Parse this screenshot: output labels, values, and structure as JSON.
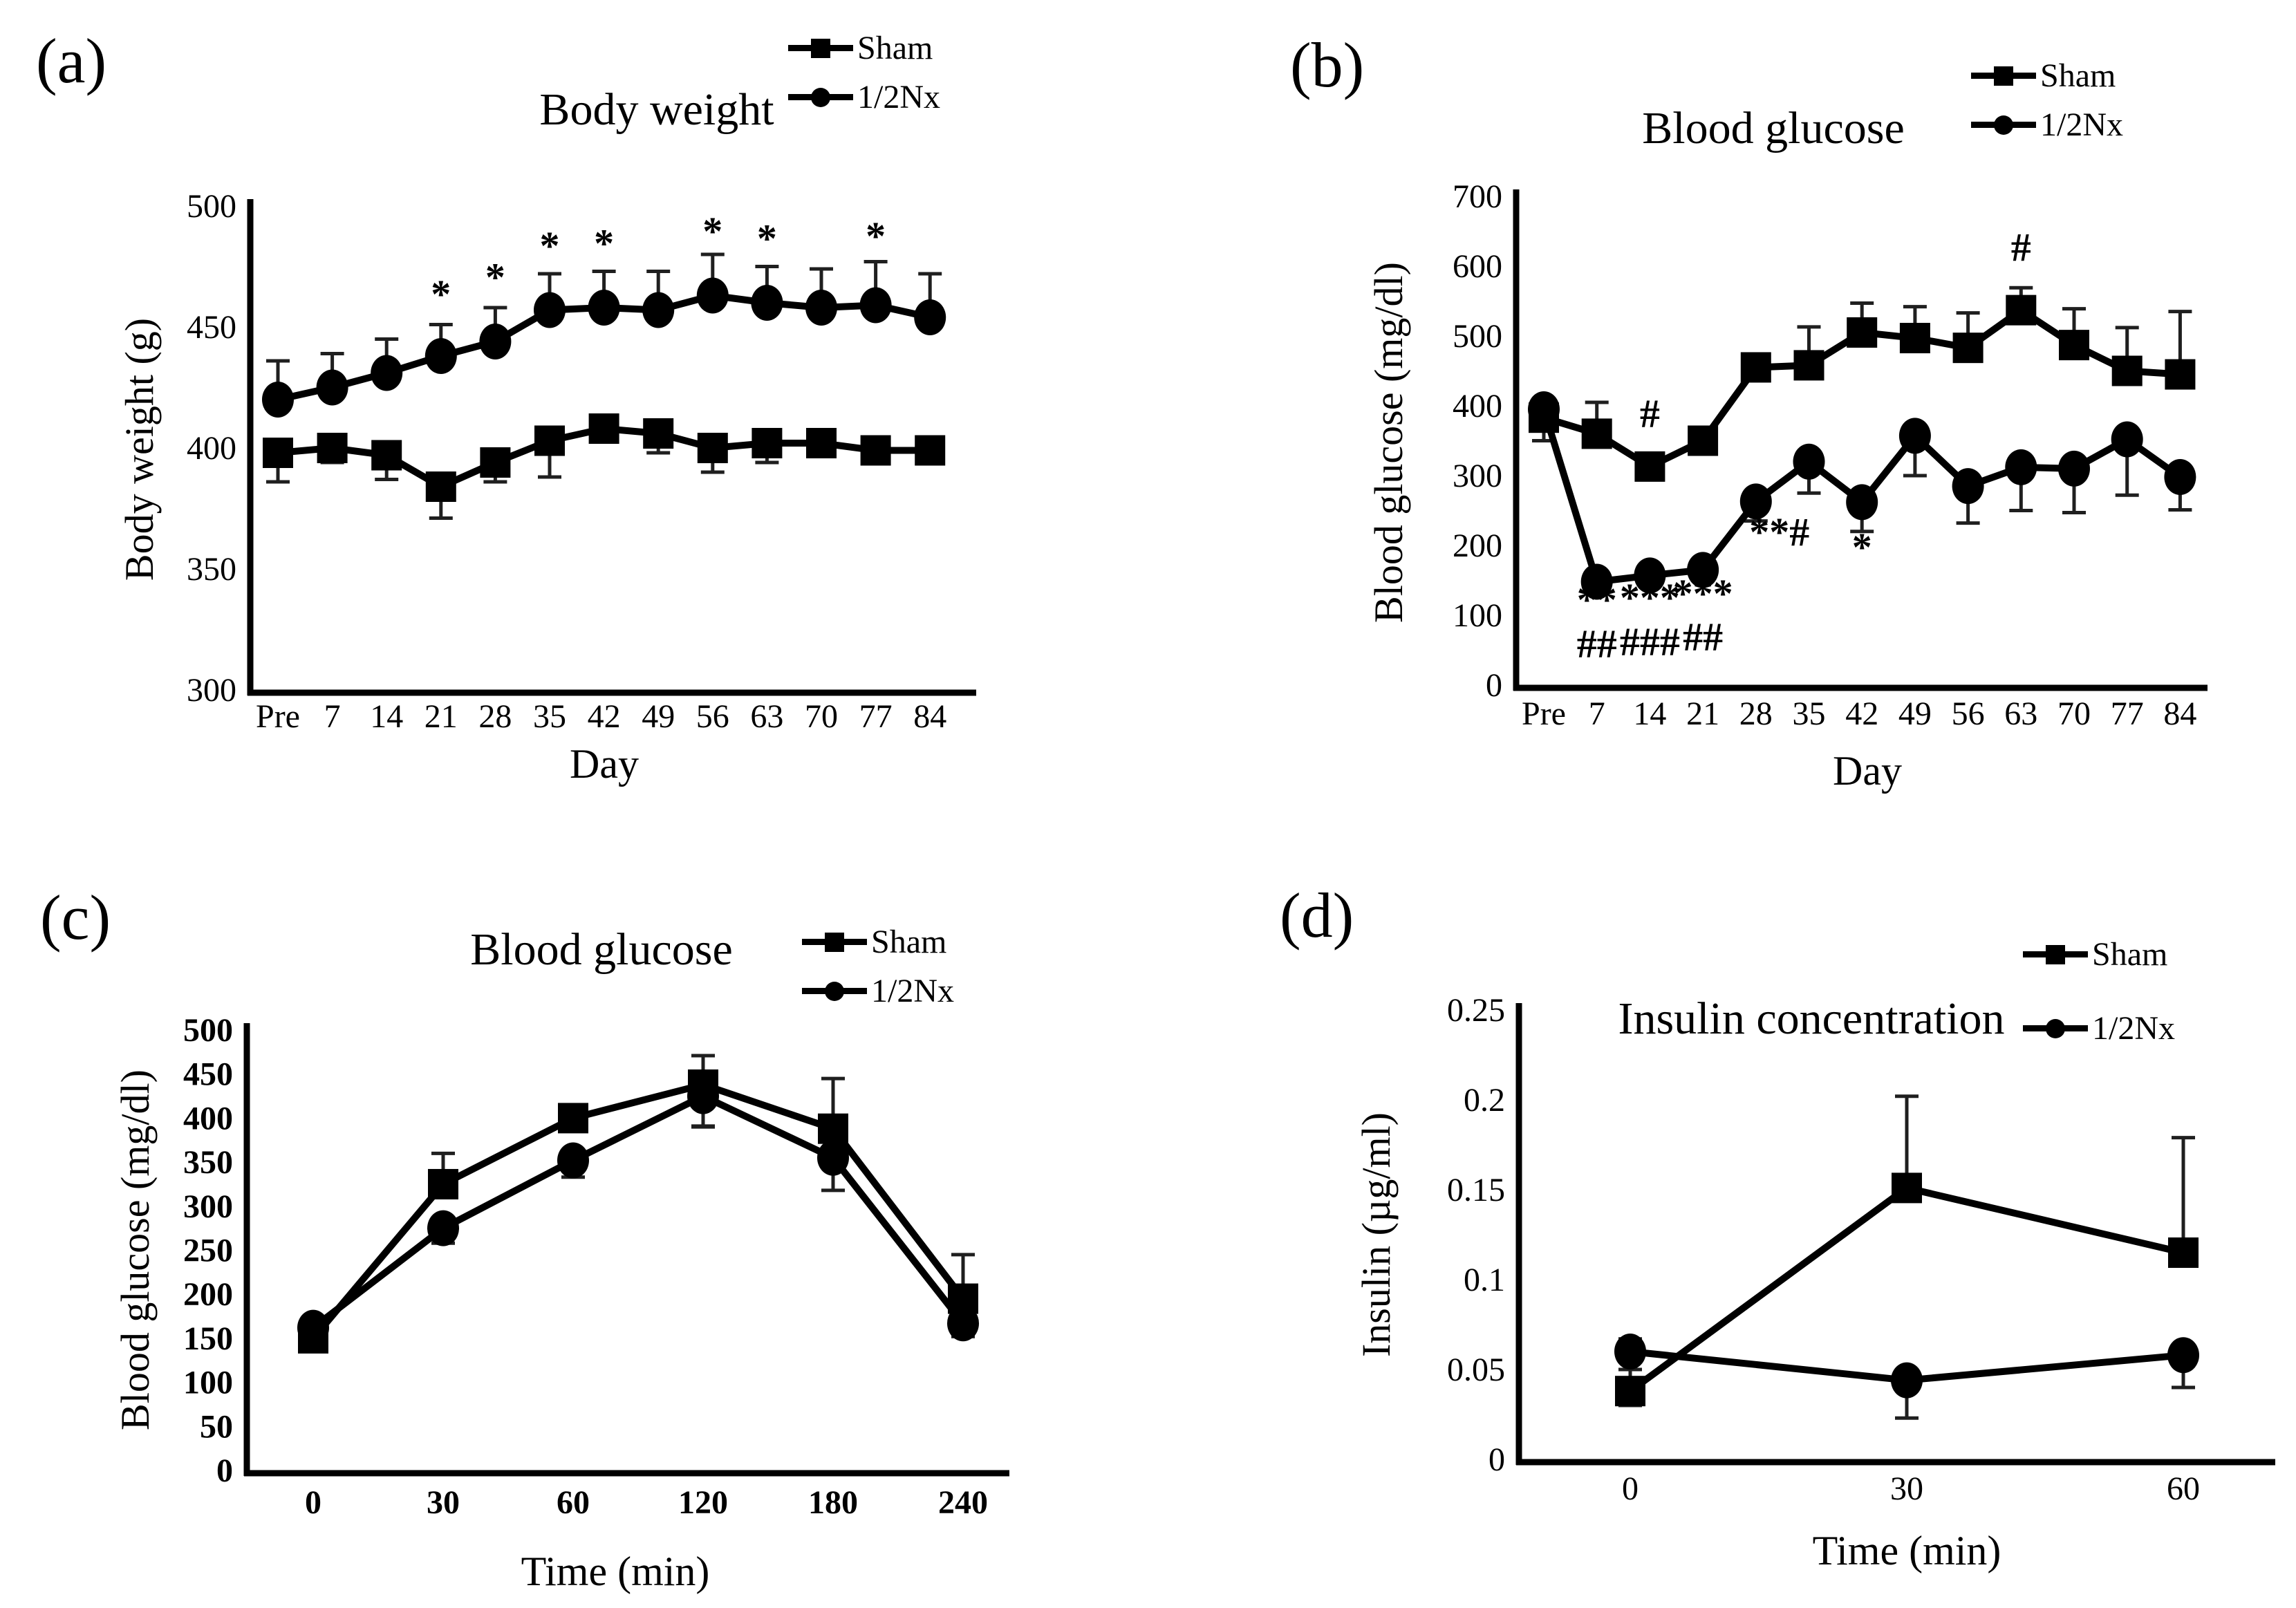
{
  "figure": {
    "background": "#ffffff",
    "series_color": "#000000",
    "errorbar_color": "#1f1f1f"
  },
  "chart_data": [
    {
      "id": "a",
      "panel_label": "(a)",
      "type": "line",
      "title": "Body weight",
      "xlabel": "Day",
      "ylabel": "Body weight (g)",
      "ylim": [
        300,
        500
      ],
      "yticks": [
        "300",
        "350",
        "400",
        "450",
        "500"
      ],
      "categories": [
        "Pre",
        "7",
        "14",
        "21",
        "28",
        "35",
        "42",
        "49",
        "56",
        "63",
        "70",
        "77",
        "84"
      ],
      "legend_position": "top-right",
      "grid": false,
      "series": [
        {
          "name": "Sham",
          "marker": "square",
          "values": [
            398,
            400,
            397,
            384,
            394,
            403,
            408,
            406,
            400,
            402,
            402,
            399,
            399
          ],
          "err_up": [
            0,
            0,
            0,
            0,
            0,
            0,
            0,
            0,
            0,
            0,
            0,
            0,
            0
          ],
          "err_down": [
            12,
            6,
            10,
            13,
            8,
            15,
            0,
            8,
            10,
            8,
            5,
            5,
            0
          ]
        },
        {
          "name": "1/2Nx",
          "marker": "circle",
          "values": [
            420,
            425,
            431,
            438,
            444,
            457,
            458,
            457,
            463,
            460,
            458,
            459,
            454
          ],
          "err_up": [
            16,
            14,
            14,
            13,
            14,
            15,
            15,
            16,
            17,
            15,
            16,
            18,
            18
          ],
          "err_down": [
            0,
            0,
            0,
            0,
            0,
            0,
            0,
            0,
            0,
            0,
            0,
            0,
            0
          ]
        }
      ],
      "annotations": [
        {
          "text": "*",
          "xi": 3,
          "y": 458
        },
        {
          "text": "*",
          "xi": 4,
          "y": 465
        },
        {
          "text": "*",
          "xi": 5,
          "y": 478
        },
        {
          "text": "*",
          "xi": 6,
          "y": 479
        },
        {
          "text": "*",
          "xi": 8,
          "y": 484
        },
        {
          "text": "*",
          "xi": 9,
          "y": 481
        },
        {
          "text": "*",
          "xi": 11,
          "y": 482
        }
      ]
    },
    {
      "id": "b",
      "panel_label": "(b)",
      "type": "line",
      "title": "Blood glucose",
      "xlabel": "Day",
      "ylabel": "Blood glucose (mg/dl)",
      "ylim": [
        0,
        700
      ],
      "yticks": [
        "0",
        "100",
        "200",
        "300",
        "400",
        "500",
        "600",
        "700"
      ],
      "categories": [
        "Pre",
        "7",
        "14",
        "21",
        "28",
        "35",
        "42",
        "49",
        "56",
        "63",
        "70",
        "77",
        "84"
      ],
      "legend_position": "top-right",
      "grid": false,
      "series": [
        {
          "name": "Sham",
          "marker": "square",
          "values": [
            383,
            360,
            313,
            350,
            455,
            458,
            505,
            497,
            483,
            537,
            487,
            450,
            445
          ],
          "err_up": [
            0,
            45,
            0,
            0,
            18,
            55,
            42,
            45,
            50,
            32,
            52,
            62,
            90
          ],
          "err_down": [
            33,
            0,
            0,
            0,
            0,
            0,
            0,
            0,
            0,
            0,
            0,
            0,
            0
          ]
        },
        {
          "name": "1/2Nx",
          "marker": "circle",
          "values": [
            395,
            148,
            157,
            165,
            263,
            320,
            262,
            357,
            285,
            312,
            310,
            352,
            298
          ],
          "err_up": [
            0,
            0,
            0,
            0,
            0,
            0,
            0,
            0,
            0,
            0,
            0,
            0,
            0
          ],
          "err_down": [
            0,
            12,
            12,
            12,
            28,
            45,
            42,
            57,
            53,
            62,
            63,
            80,
            47
          ]
        }
      ],
      "annotations": [
        {
          "text": "#",
          "xi": 2,
          "y": 370
        },
        {
          "text": "#",
          "xi": 9,
          "y": 608
        },
        {
          "text": "**",
          "xi": 1,
          "y": 103
        },
        {
          "text": "***",
          "xi": 2,
          "y": 106
        },
        {
          "text": "***",
          "xi": 3,
          "y": 112
        },
        {
          "text": "##",
          "xi": 1,
          "y": 40
        },
        {
          "text": "###",
          "xi": 2,
          "y": 43
        },
        {
          "text": "##",
          "xi": 3,
          "y": 50
        },
        {
          "text": "**#",
          "xi": 4,
          "y": 200,
          "dx": 34
        },
        {
          "text": "*",
          "xi": 6,
          "y": 178
        }
      ]
    },
    {
      "id": "c",
      "panel_label": "(c)",
      "type": "line",
      "title": "Blood glucose",
      "xlabel": "Time (min)",
      "ylabel": "Blood glucose (mg/dl)",
      "ylim": [
        0,
        500
      ],
      "yticks": [
        "0",
        "50",
        "100",
        "150",
        "200",
        "250",
        "300",
        "350",
        "400",
        "450",
        "500"
      ],
      "categories": [
        "0",
        "30",
        "60",
        "120",
        "180",
        "240"
      ],
      "legend_position": "top-right",
      "grid": false,
      "series": [
        {
          "name": "Sham",
          "marker": "square",
          "values": [
            150,
            325,
            400,
            438,
            388,
            195
          ],
          "err_up": [
            12,
            35,
            12,
            33,
            57,
            50
          ],
          "err_down": [
            12,
            0,
            0,
            47,
            0,
            0
          ]
        },
        {
          "name": "1/2Nx",
          "marker": "circle",
          "values": [
            162,
            275,
            352,
            425,
            355,
            167
          ],
          "err_up": [
            10,
            0,
            0,
            0,
            0,
            0
          ],
          "err_down": [
            0,
            17,
            19,
            35,
            37,
            15
          ]
        }
      ],
      "annotations": []
    },
    {
      "id": "d",
      "panel_label": "(d)",
      "type": "line",
      "title": "Insulin concentration",
      "xlabel": "Time (min)",
      "ylabel": "Insulin (µg/ml)",
      "ylim": [
        0,
        0.25
      ],
      "yticks": [
        "0",
        "0.05",
        "0.1",
        "0.15",
        "0.2",
        "0.25"
      ],
      "categories": [
        "0",
        "30",
        "60"
      ],
      "legend_position": "top-right",
      "grid": false,
      "series": [
        {
          "name": "Sham",
          "marker": "square",
          "values": [
            0.038,
            0.151,
            0.115
          ],
          "err_up": [
            0.012,
            0.051,
            0.064
          ],
          "err_down": [
            0.008,
            0,
            0
          ]
        },
        {
          "name": "1/2Nx",
          "marker": "circle",
          "values": [
            0.06,
            0.044,
            0.058
          ],
          "err_up": [
            0.007,
            0,
            0
          ],
          "err_down": [
            0,
            0.021,
            0.018
          ]
        }
      ],
      "annotations": []
    }
  ]
}
